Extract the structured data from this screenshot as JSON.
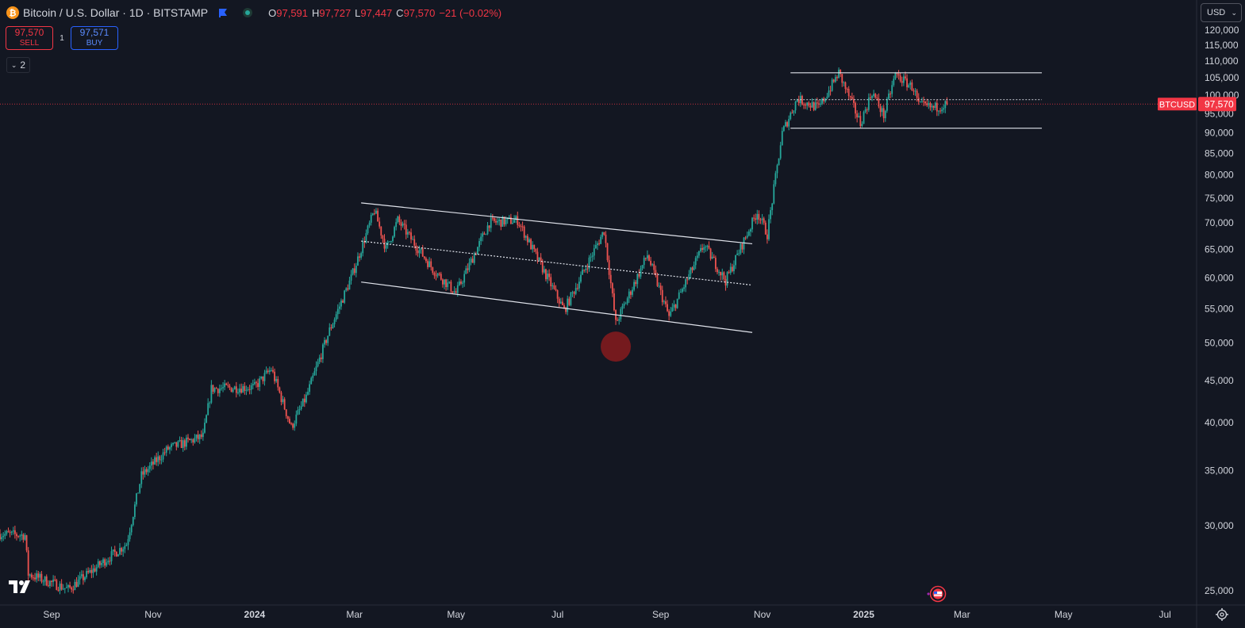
{
  "header": {
    "symbol_icon": "bitcoin-icon",
    "title": "Bitcoin / U.S. Dollar · 1D · BITSTAMP",
    "flag_icon": "bookmark-flag-icon",
    "status_icon": "market-open-dot-icon",
    "ohlc": [
      {
        "key": "O",
        "value": "97,591"
      },
      {
        "key": "H",
        "value": "97,727"
      },
      {
        "key": "L",
        "value": "97,447"
      },
      {
        "key": "C",
        "value": "97,570"
      }
    ],
    "change": "−21 (−0.02%)"
  },
  "trade": {
    "sell_price": "97,570",
    "sell_label": "SELL",
    "quantity": "1",
    "buy_price": "97,571",
    "buy_label": "BUY"
  },
  "indicators": {
    "chevron": "chevron-down-icon",
    "count": "2"
  },
  "currency": {
    "label": "USD",
    "icon": "chevron-down-icon"
  },
  "price_badge": {
    "symbol": "BTCUSD",
    "price": "97,570"
  },
  "colors": {
    "background": "#131722",
    "up": "#26a69a",
    "down": "#ef5350",
    "last_price": "#f23645",
    "text": "#d1d4dc"
  },
  "chart_data": {
    "type": "candlestick",
    "title": "Bitcoin / U.S. Dollar · 1D · BITSTAMP",
    "y_scale": "log",
    "ylim": [
      23500,
      123500
    ],
    "y_ticks": [
      "120,000",
      "115,000",
      "110,000",
      "105,000",
      "100,000",
      "95,000",
      "90,000",
      "85,000",
      "80,000",
      "75,000",
      "70,000",
      "65,000",
      "60,000",
      "55,000",
      "50,000",
      "45,000",
      "40,000",
      "35,000",
      "30,000",
      "25,000"
    ],
    "y_tick_values": [
      120000,
      115000,
      110000,
      105000,
      100000,
      95000,
      90000,
      85000,
      80000,
      75000,
      70000,
      65000,
      60000,
      55000,
      50000,
      45000,
      40000,
      35000,
      30000,
      25000
    ],
    "xlim": [
      "2023-08-01",
      "2025-07-20"
    ],
    "x_ticks": [
      {
        "label": "Sep",
        "date": "2023-09-01"
      },
      {
        "label": "Nov",
        "date": "2023-11-01"
      },
      {
        "label": "2024",
        "date": "2024-01-01"
      },
      {
        "label": "Mar",
        "date": "2024-03-01"
      },
      {
        "label": "May",
        "date": "2024-05-01"
      },
      {
        "label": "Jul",
        "date": "2024-07-01"
      },
      {
        "label": "Sep",
        "date": "2024-09-01"
      },
      {
        "label": "Nov",
        "date": "2024-11-01"
      },
      {
        "label": "2025",
        "date": "2025-01-01"
      },
      {
        "label": "Mar",
        "date": "2025-03-01"
      },
      {
        "label": "May",
        "date": "2025-05-01"
      },
      {
        "label": "Jul",
        "date": "2025-07-01"
      }
    ],
    "last_price": 97570,
    "price_path": [
      {
        "date": "2023-08-01",
        "close": 29300
      },
      {
        "date": "2023-08-16",
        "close": 29200
      },
      {
        "date": "2023-08-18",
        "close": 26200
      },
      {
        "date": "2023-09-11",
        "close": 25100
      },
      {
        "date": "2023-10-01",
        "close": 27000
      },
      {
        "date": "2023-10-16",
        "close": 28500
      },
      {
        "date": "2023-10-25",
        "close": 34500
      },
      {
        "date": "2023-11-10",
        "close": 37200
      },
      {
        "date": "2023-12-01",
        "close": 38500
      },
      {
        "date": "2023-12-06",
        "close": 44000
      },
      {
        "date": "2024-01-01",
        "close": 44200
      },
      {
        "date": "2024-01-11",
        "close": 46500
      },
      {
        "date": "2024-01-23",
        "close": 39500
      },
      {
        "date": "2024-02-01",
        "close": 43000
      },
      {
        "date": "2024-02-15",
        "close": 51800
      },
      {
        "date": "2024-02-28",
        "close": 60000
      },
      {
        "date": "2024-03-13",
        "close": 72500
      },
      {
        "date": "2024-03-20",
        "close": 65000
      },
      {
        "date": "2024-03-27",
        "close": 70500
      },
      {
        "date": "2024-04-17",
        "close": 61500
      },
      {
        "date": "2024-05-01",
        "close": 57500
      },
      {
        "date": "2024-05-21",
        "close": 70000
      },
      {
        "date": "2024-06-07",
        "close": 70500
      },
      {
        "date": "2024-06-24",
        "close": 60500
      },
      {
        "date": "2024-07-05",
        "close": 54800
      },
      {
        "date": "2024-07-29",
        "close": 68500
      },
      {
        "date": "2024-08-05",
        "close": 52800
      },
      {
        "date": "2024-08-24",
        "close": 64000
      },
      {
        "date": "2024-09-06",
        "close": 53800
      },
      {
        "date": "2024-09-27",
        "close": 65800
      },
      {
        "date": "2024-10-10",
        "close": 59500
      },
      {
        "date": "2024-10-29",
        "close": 72200
      },
      {
        "date": "2024-11-04",
        "close": 67800
      },
      {
        "date": "2024-11-13",
        "close": 90000
      },
      {
        "date": "2024-11-22",
        "close": 99000
      },
      {
        "date": "2024-12-05",
        "close": 96500
      },
      {
        "date": "2024-12-17",
        "close": 106500
      },
      {
        "date": "2024-12-30",
        "close": 92500
      },
      {
        "date": "2025-01-06",
        "close": 101000
      },
      {
        "date": "2025-01-13",
        "close": 94500
      },
      {
        "date": "2025-01-20",
        "close": 106000
      },
      {
        "date": "2025-01-31",
        "close": 102000
      },
      {
        "date": "2025-02-03",
        "close": 97200
      },
      {
        "date": "2025-02-12",
        "close": 96500
      },
      {
        "date": "2025-02-20",
        "close": 97570
      }
    ],
    "annotations": [
      {
        "type": "trendline",
        "name": "channel-top",
        "from": {
          "date": "2024-03-05",
          "price": 74000
        },
        "to": {
          "date": "2024-10-26",
          "price": 66000
        }
      },
      {
        "type": "trendline",
        "name": "channel-mid",
        "from": {
          "date": "2024-03-05",
          "price": 66500
        },
        "to": {
          "date": "2024-10-26",
          "price": 58800
        },
        "dashed": true
      },
      {
        "type": "trendline",
        "name": "channel-bottom",
        "from": {
          "date": "2024-03-05",
          "price": 59300
        },
        "to": {
          "date": "2024-10-26",
          "price": 51500
        }
      },
      {
        "type": "horizontal",
        "name": "range-top",
        "price": 106500,
        "from": "2024-11-18",
        "to": "2025-04-18"
      },
      {
        "type": "horizontal",
        "name": "range-mid",
        "price": 98800,
        "from": "2024-11-18",
        "to": "2025-04-18",
        "dashed": true
      },
      {
        "type": "horizontal",
        "name": "range-bottom",
        "price": 91200,
        "from": "2024-11-18",
        "to": "2025-04-18"
      },
      {
        "type": "marker",
        "name": "low-highlight",
        "date": "2024-08-05",
        "price": 49500
      }
    ]
  }
}
